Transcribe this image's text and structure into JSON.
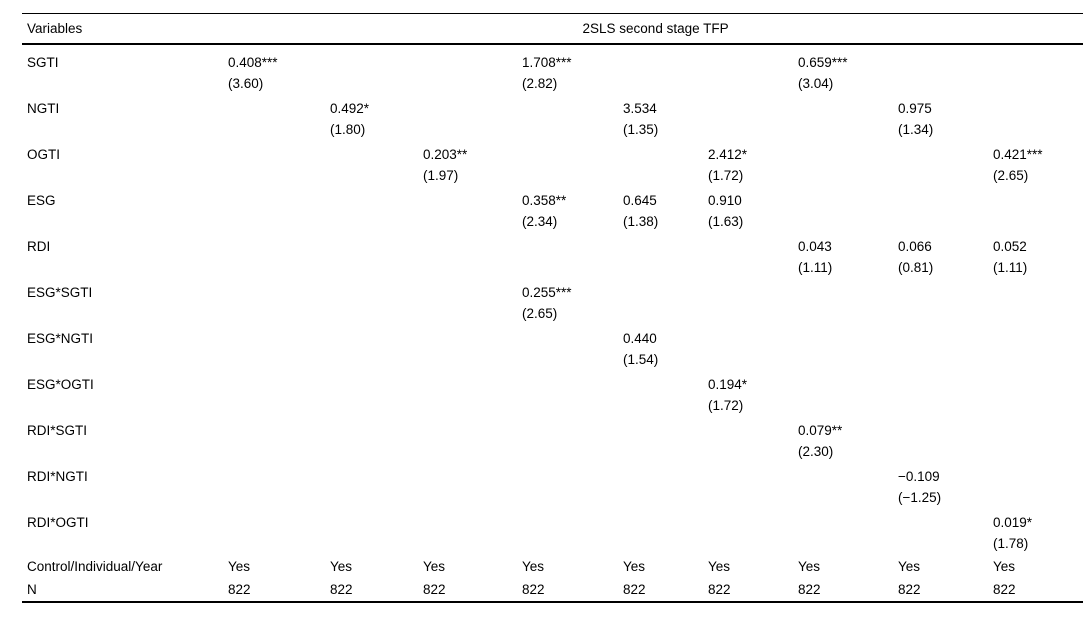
{
  "page": {
    "background_color": "#ffffff",
    "text_color": "#000000",
    "rule_color": "#000000"
  },
  "table": {
    "header": {
      "variables_label": "Variables",
      "span_label": "2SLS second stage TFP"
    },
    "columns_count": 9,
    "rows": [
      {
        "label": "SGTI",
        "coefs": [
          "0.408***",
          "",
          "",
          "1.708***",
          "",
          "",
          "0.659***",
          "",
          ""
        ],
        "tstats": [
          "(3.60)",
          "",
          "",
          "(2.82)",
          "",
          "",
          "(3.04)",
          "",
          ""
        ]
      },
      {
        "label": "NGTI",
        "coefs": [
          "",
          "0.492*",
          "",
          "",
          "3.534",
          "",
          "",
          "0.975",
          ""
        ],
        "tstats": [
          "",
          "(1.80)",
          "",
          "",
          "(1.35)",
          "",
          "",
          "(1.34)",
          ""
        ]
      },
      {
        "label": "OGTI",
        "coefs": [
          "",
          "",
          "0.203**",
          "",
          "",
          "2.412*",
          "",
          "",
          "0.421***"
        ],
        "tstats": [
          "",
          "",
          "(1.97)",
          "",
          "",
          "(1.72)",
          "",
          "",
          "(2.65)"
        ]
      },
      {
        "label": "ESG",
        "coefs": [
          "",
          "",
          "",
          "0.358**",
          "0.645",
          "0.910",
          "",
          "",
          ""
        ],
        "tstats": [
          "",
          "",
          "",
          "(2.34)",
          "(1.38)",
          "(1.63)",
          "",
          "",
          ""
        ]
      },
      {
        "label": "RDI",
        "coefs": [
          "",
          "",
          "",
          "",
          "",
          "",
          "0.043",
          "0.066",
          "0.052"
        ],
        "tstats": [
          "",
          "",
          "",
          "",
          "",
          "",
          "(1.11)",
          "(0.81)",
          "(1.11)"
        ]
      },
      {
        "label": "ESG*SGTI",
        "coefs": [
          "",
          "",
          "",
          "0.255***",
          "",
          "",
          "",
          "",
          ""
        ],
        "tstats": [
          "",
          "",
          "",
          "(2.65)",
          "",
          "",
          "",
          "",
          ""
        ]
      },
      {
        "label": "ESG*NGTI",
        "coefs": [
          "",
          "",
          "",
          "",
          "0.440",
          "",
          "",
          "",
          ""
        ],
        "tstats": [
          "",
          "",
          "",
          "",
          "(1.54)",
          "",
          "",
          "",
          ""
        ]
      },
      {
        "label": "ESG*OGTI",
        "coefs": [
          "",
          "",
          "",
          "",
          "",
          "0.194*",
          "",
          "",
          ""
        ],
        "tstats": [
          "",
          "",
          "",
          "",
          "",
          "(1.72)",
          "",
          "",
          ""
        ]
      },
      {
        "label": "RDI*SGTI",
        "coefs": [
          "",
          "",
          "",
          "",
          "",
          "",
          "0.079**",
          "",
          ""
        ],
        "tstats": [
          "",
          "",
          "",
          "",
          "",
          "",
          "(2.30)",
          "",
          ""
        ]
      },
      {
        "label": "RDI*NGTI",
        "coefs": [
          "",
          "",
          "",
          "",
          "",
          "",
          "",
          "−0.109",
          ""
        ],
        "tstats": [
          "",
          "",
          "",
          "",
          "",
          "",
          "",
          "(−1.25)",
          ""
        ]
      },
      {
        "label": "RDI*OGTI",
        "coefs": [
          "",
          "",
          "",
          "",
          "",
          "",
          "",
          "",
          "0.019*"
        ],
        "tstats": [
          "",
          "",
          "",
          "",
          "",
          "",
          "",
          "",
          "(1.78)"
        ]
      }
    ],
    "footer": [
      {
        "label": "Control/Individual/Year",
        "values": [
          "Yes",
          "Yes",
          "Yes",
          "Yes",
          "Yes",
          "Yes",
          "Yes",
          "Yes",
          "Yes"
        ]
      },
      {
        "label": "N",
        "values": [
          "822",
          "822",
          "822",
          "822",
          "822",
          "822",
          "822",
          "822",
          "822"
        ]
      }
    ]
  }
}
